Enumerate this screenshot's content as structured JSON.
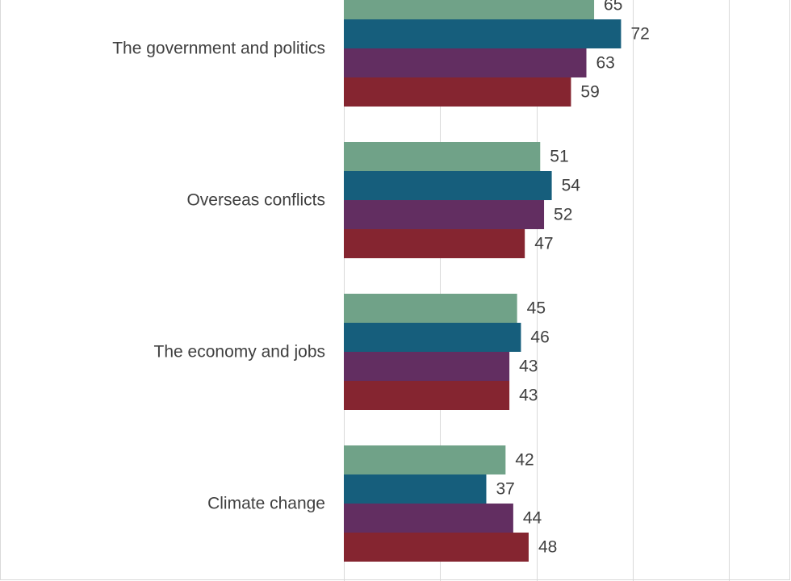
{
  "chart_data": {
    "type": "bar",
    "orientation": "horizontal",
    "categories": [
      "The government and politics",
      "Overseas conflicts",
      "The economy and jobs",
      "Climate change"
    ],
    "series": [
      {
        "values": [
          65,
          51,
          45,
          42
        ],
        "color": "#70a288"
      },
      {
        "values": [
          72,
          54,
          46,
          37
        ],
        "color": "#165e7c"
      },
      {
        "values": [
          63,
          52,
          43,
          44
        ],
        "color": "#622e61"
      },
      {
        "values": [
          59,
          47,
          43,
          48
        ],
        "color": "#852530"
      }
    ],
    "xlim": [
      0,
      100
    ],
    "grid": true,
    "legend": "none"
  }
}
